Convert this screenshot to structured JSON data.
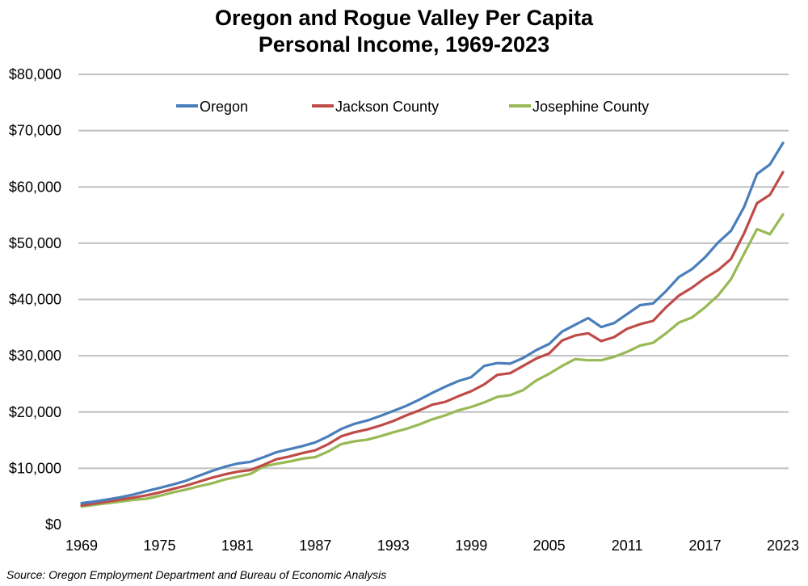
{
  "chart_data": {
    "type": "line",
    "title": [
      "Oregon and Rogue Valley Per Capita",
      "Personal Income, 1969-2023"
    ],
    "xlabel": "",
    "ylabel": "",
    "x": [
      1969,
      1970,
      1971,
      1972,
      1973,
      1974,
      1975,
      1976,
      1977,
      1978,
      1979,
      1980,
      1981,
      1982,
      1983,
      1984,
      1985,
      1986,
      1987,
      1988,
      1989,
      1990,
      1991,
      1992,
      1993,
      1994,
      1995,
      1996,
      1997,
      1998,
      1999,
      2000,
      2001,
      2002,
      2003,
      2004,
      2005,
      2006,
      2007,
      2008,
      2009,
      2010,
      2011,
      2012,
      2013,
      2014,
      2015,
      2016,
      2017,
      2018,
      2019,
      2020,
      2021,
      2022,
      2023
    ],
    "xticks": [
      "1969",
      "1975",
      "1981",
      "1987",
      "1993",
      "1999",
      "2005",
      "2011",
      "2017",
      "2023"
    ],
    "xlim": [
      1969,
      2023
    ],
    "ylim": [
      0,
      80000
    ],
    "yticks": [
      0,
      10000,
      20000,
      30000,
      40000,
      50000,
      60000,
      70000,
      80000
    ],
    "ytick_labels": [
      "$0",
      "$10,000",
      "$20,000",
      "$30,000",
      "$40,000",
      "$50,000",
      "$60,000",
      "$70,000",
      "$80,000"
    ],
    "grid": "horizontal",
    "legend_position": "top-center",
    "series": [
      {
        "name": "Oregon",
        "color": "#4a7ebb",
        "values": [
          3800,
          4100,
          4450,
          4850,
          5350,
          5950,
          6500,
          7100,
          7750,
          8650,
          9500,
          10250,
          10850,
          11150,
          11950,
          12850,
          13400,
          13950,
          14600,
          15700,
          17000,
          17900,
          18500,
          19300,
          20200,
          21100,
          22200,
          23400,
          24500,
          25500,
          26200,
          28200,
          28700,
          28600,
          29600,
          31000,
          32100,
          34300,
          35500,
          36700,
          35100,
          35800,
          37400,
          39000,
          39300,
          41500,
          44000,
          45400,
          47500,
          50100,
          52200,
          56400,
          62300,
          64000,
          67800
        ]
      },
      {
        "name": "Jackson County",
        "color": "#be4b48",
        "values": [
          3400,
          3750,
          4100,
          4450,
          4800,
          5200,
          5700,
          6300,
          6900,
          7600,
          8300,
          8900,
          9400,
          9700,
          10600,
          11600,
          12100,
          12700,
          13200,
          14300,
          15700,
          16400,
          16900,
          17600,
          18400,
          19400,
          20300,
          21300,
          21800,
          22800,
          23700,
          24900,
          26600,
          26900,
          28200,
          29500,
          30400,
          32700,
          33600,
          34000,
          32600,
          33300,
          34800,
          35600,
          36200,
          38600,
          40700,
          42100,
          43800,
          45200,
          47200,
          51700,
          57100,
          58600,
          62600
        ]
      },
      {
        "name": "Josephine County",
        "color": "#98b954",
        "values": [
          3200,
          3500,
          3800,
          4100,
          4400,
          4600,
          5100,
          5700,
          6200,
          6800,
          7300,
          8000,
          8500,
          9000,
          10300,
          10800,
          11200,
          11700,
          12000,
          13000,
          14300,
          14800,
          15100,
          15700,
          16400,
          17000,
          17800,
          18700,
          19400,
          20300,
          20900,
          21700,
          22700,
          23000,
          23900,
          25600,
          26800,
          28200,
          29400,
          29200,
          29200,
          29800,
          30700,
          31800,
          32300,
          34000,
          35900,
          36800,
          38600,
          40700,
          43600,
          48100,
          52500,
          51600,
          55100
        ]
      }
    ]
  },
  "legend": {
    "items": [
      "Oregon",
      "Jackson County",
      "Josephine County"
    ]
  },
  "source": "Source: Oregon Employment Department and Bureau of Economic Analysis"
}
